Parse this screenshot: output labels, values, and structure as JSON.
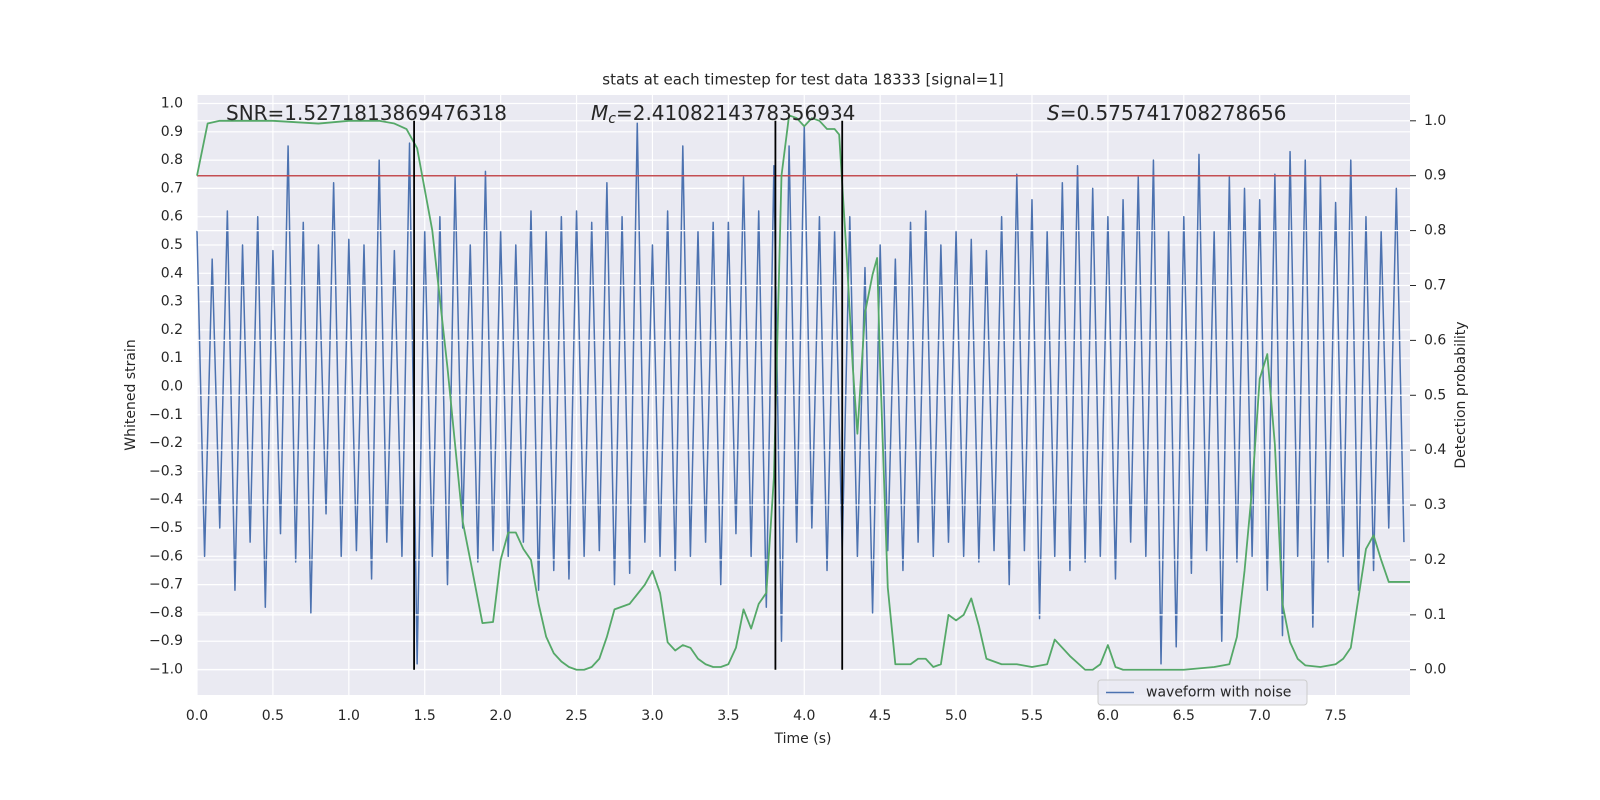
{
  "chart_data": {
    "type": "line",
    "title": "stats at each timestep for test data 18333 [signal=1]",
    "x_label": "Time (s)",
    "y_label": "Whitened strain",
    "y2_label": "Detection probability",
    "xlim": [
      0,
      7.99
    ],
    "ylim": [
      -1.09,
      1.03
    ],
    "y2lim": [
      -0.046,
      1.047
    ],
    "xticks": [
      {
        "value": 0,
        "label": "0.0"
      },
      {
        "value": 0.5,
        "label": "0.5"
      },
      {
        "value": 1,
        "label": "1.0"
      },
      {
        "value": 1.5,
        "label": "1.5"
      },
      {
        "value": 2,
        "label": "2.0"
      },
      {
        "value": 2.5,
        "label": "2.5"
      },
      {
        "value": 3,
        "label": "3.0"
      },
      {
        "value": 3.5,
        "label": "3.5"
      },
      {
        "value": 4,
        "label": "4.0"
      },
      {
        "value": 4.5,
        "label": "4.5"
      },
      {
        "value": 5,
        "label": "5.0"
      },
      {
        "value": 5.5,
        "label": "5.5"
      },
      {
        "value": 6,
        "label": "6.0"
      },
      {
        "value": 6.5,
        "label": "6.5"
      },
      {
        "value": 7,
        "label": "7.0"
      },
      {
        "value": 7.5,
        "label": "7.5"
      }
    ],
    "yticks": [
      {
        "value": -1,
        "label": "−1.0"
      },
      {
        "value": -0.9,
        "label": "−0.9"
      },
      {
        "value": -0.8,
        "label": "−0.8"
      },
      {
        "value": -0.7,
        "label": "−0.7"
      },
      {
        "value": -0.6,
        "label": "−0.6"
      },
      {
        "value": -0.5,
        "label": "−0.5"
      },
      {
        "value": -0.4,
        "label": "−0.4"
      },
      {
        "value": -0.3,
        "label": "−0.3"
      },
      {
        "value": -0.2,
        "label": "−0.2"
      },
      {
        "value": -0.1,
        "label": "−0.1"
      },
      {
        "value": 0,
        "label": "0.0"
      },
      {
        "value": 0.1,
        "label": "0.1"
      },
      {
        "value": 0.2,
        "label": "0.2"
      },
      {
        "value": 0.3,
        "label": "0.3"
      },
      {
        "value": 0.4,
        "label": "0.4"
      },
      {
        "value": 0.5,
        "label": "0.5"
      },
      {
        "value": 0.6,
        "label": "0.6"
      },
      {
        "value": 0.7,
        "label": "0.7"
      },
      {
        "value": 0.8,
        "label": "0.8"
      },
      {
        "value": 0.9,
        "label": "0.9"
      },
      {
        "value": 1,
        "label": "1.0"
      }
    ],
    "y2ticks": [
      {
        "value": 0,
        "label": "0.0"
      },
      {
        "value": 0.1,
        "label": "0.1"
      },
      {
        "value": 0.2,
        "label": "0.2"
      },
      {
        "value": 0.3,
        "label": "0.3"
      },
      {
        "value": 0.4,
        "label": "0.4"
      },
      {
        "value": 0.5,
        "label": "0.5"
      },
      {
        "value": 0.6,
        "label": "0.6"
      },
      {
        "value": 0.7,
        "label": "0.7"
      },
      {
        "value": 0.8,
        "label": "0.8"
      },
      {
        "value": 0.9,
        "label": "0.9"
      },
      {
        "value": 1,
        "label": "1.0"
      }
    ],
    "grid": true,
    "legend": "lower right",
    "threshold": {
      "value": 0.9,
      "axis": "y2",
      "color": "#c44e52"
    },
    "vlines": {
      "x": [
        1.43,
        3.81,
        4.25
      ],
      "range": [
        0,
        1
      ],
      "axis": "y2",
      "color": "#000000"
    },
    "annotations": [
      {
        "text": "SNR=1.5271813869476318"
      },
      {
        "symbol": "M",
        "subscript": "c",
        "text": "=2.4108214378356934"
      },
      {
        "symbol": "S",
        "text": "=0.575741708278656"
      }
    ],
    "series": [
      {
        "name": "waveform with noise",
        "color": "#4c72b0",
        "axis": "y",
        "x": [
          0,
          0.05,
          0.1,
          0.15,
          0.2,
          0.25,
          0.3,
          0.35,
          0.4,
          0.45,
          0.5,
          0.55,
          0.6,
          0.65,
          0.7,
          0.75,
          0.8,
          0.85,
          0.9,
          0.95,
          1,
          1.05,
          1.1,
          1.15,
          1.2,
          1.25,
          1.3,
          1.35,
          1.4,
          1.45,
          1.5,
          1.55,
          1.6,
          1.65,
          1.7,
          1.75,
          1.8,
          1.85,
          1.9,
          1.95,
          2,
          2.05,
          2.1,
          2.15,
          2.2,
          2.25,
          2.3,
          2.35,
          2.4,
          2.45,
          2.5,
          2.55,
          2.6,
          2.65,
          2.7,
          2.75,
          2.8,
          2.85,
          2.9,
          2.95,
          3,
          3.05,
          3.1,
          3.15,
          3.2,
          3.25,
          3.3,
          3.35,
          3.4,
          3.45,
          3.5,
          3.55,
          3.6,
          3.65,
          3.7,
          3.75,
          3.8,
          3.85,
          3.9,
          3.95,
          4,
          4.05,
          4.1,
          4.15,
          4.2,
          4.25,
          4.3,
          4.35,
          4.4,
          4.45,
          4.5,
          4.55,
          4.6,
          4.65,
          4.7,
          4.75,
          4.8,
          4.85,
          4.9,
          4.95,
          5,
          5.05,
          5.1,
          5.15,
          5.2,
          5.25,
          5.3,
          5.35,
          5.4,
          5.45,
          5.5,
          5.55,
          5.6,
          5.65,
          5.7,
          5.75,
          5.8,
          5.85,
          5.9,
          5.95,
          6,
          6.05,
          6.1,
          6.15,
          6.2,
          6.25,
          6.3,
          6.35,
          6.4,
          6.45,
          6.5,
          6.55,
          6.6,
          6.65,
          6.7,
          6.75,
          6.8,
          6.85,
          6.9,
          6.95,
          7,
          7.05,
          7.1,
          7.15,
          7.2,
          7.25,
          7.3,
          7.35,
          7.4,
          7.45,
          7.5,
          7.55,
          7.6,
          7.65,
          7.7,
          7.75,
          7.8,
          7.85,
          7.9,
          7.95
        ],
        "values": [
          0.55,
          -0.6,
          0.45,
          -0.5,
          0.62,
          -0.72,
          0.5,
          -0.55,
          0.6,
          -0.78,
          0.48,
          -0.52,
          0.85,
          -0.62,
          0.58,
          -0.8,
          0.5,
          -0.45,
          0.72,
          -0.6,
          0.52,
          -0.58,
          0.5,
          -0.68,
          0.8,
          -0.55,
          0.48,
          -0.6,
          0.86,
          -0.98,
          0.55,
          -0.6,
          0.6,
          -0.7,
          0.74,
          -0.5,
          0.5,
          -0.62,
          0.76,
          -0.58,
          0.55,
          -0.6,
          0.5,
          -0.55,
          0.62,
          -0.72,
          0.55,
          -0.65,
          0.6,
          -0.68,
          0.62,
          -0.6,
          0.58,
          -0.58,
          0.72,
          -0.7,
          0.6,
          -0.66,
          0.93,
          -0.55,
          0.5,
          -0.6,
          0.62,
          -0.65,
          0.85,
          -0.6,
          0.55,
          -0.55,
          0.58,
          -0.7,
          0.58,
          -0.52,
          0.74,
          -0.6,
          0.62,
          -0.78,
          0.78,
          -0.9,
          0.85,
          -0.55,
          0.92,
          -0.5,
          0.6,
          -0.65,
          0.55,
          -0.58,
          0.6,
          -0.6,
          0.42,
          -0.8,
          0.5,
          -0.58,
          0.45,
          -0.65,
          0.58,
          -0.55,
          0.62,
          -0.6,
          0.5,
          -0.55,
          0.55,
          -0.6,
          0.52,
          -0.62,
          0.48,
          -0.58,
          0.6,
          -0.7,
          0.75,
          -0.58,
          0.66,
          -0.82,
          0.55,
          -0.6,
          0.72,
          -0.65,
          0.78,
          -0.62,
          0.7,
          -0.6,
          0.6,
          -0.68,
          0.66,
          -0.55,
          0.74,
          -0.6,
          0.8,
          -0.98,
          0.55,
          -0.92,
          0.6,
          -0.66,
          0.82,
          -0.58,
          0.55,
          -0.9,
          0.74,
          -0.62,
          0.7,
          -0.6,
          0.66,
          -0.72,
          0.75,
          -0.88,
          0.83,
          -0.6,
          0.8,
          -0.85,
          0.74,
          -0.62,
          0.65,
          -0.6,
          0.8,
          -0.72,
          0.6,
          -0.65,
          0.55,
          -0.5,
          0.7,
          -0.55
        ]
      },
      {
        "color": "#55a868",
        "axis": "y2",
        "x": [
          0,
          0.07,
          0.15,
          0.5,
          0.8,
          1,
          1.2,
          1.3,
          1.38,
          1.45,
          1.55,
          1.65,
          1.75,
          1.8,
          1.88,
          1.95,
          2,
          2.05,
          2.1,
          2.15,
          2.2,
          2.25,
          2.3,
          2.35,
          2.4,
          2.45,
          2.5,
          2.55,
          2.6,
          2.65,
          2.7,
          2.75,
          2.85,
          2.95,
          3,
          3.05,
          3.1,
          3.15,
          3.2,
          3.25,
          3.3,
          3.35,
          3.4,
          3.45,
          3.5,
          3.55,
          3.6,
          3.65,
          3.7,
          3.75,
          3.8,
          3.85,
          3.9,
          3.95,
          4,
          4.05,
          4.1,
          4.15,
          4.2,
          4.23,
          4.28,
          4.32,
          4.35,
          4.4,
          4.45,
          4.48,
          4.5,
          4.55,
          4.6,
          4.65,
          4.7,
          4.75,
          4.8,
          4.85,
          4.9,
          4.95,
          5,
          5.05,
          5.1,
          5.15,
          5.2,
          5.3,
          5.4,
          5.5,
          5.6,
          5.65,
          5.75,
          5.85,
          5.9,
          5.95,
          6,
          6.05,
          6.1,
          6.2,
          6.5,
          6.7,
          6.8,
          6.85,
          6.9,
          6.95,
          7,
          7.05,
          7.1,
          7.15,
          7.2,
          7.25,
          7.3,
          7.4,
          7.5,
          7.55,
          7.6,
          7.65,
          7.7,
          7.75,
          7.8,
          7.85,
          7.99
        ],
        "values": [
          0.9,
          0.995,
          1,
          1,
          0.995,
          1,
          1,
          0.995,
          0.985,
          0.95,
          0.8,
          0.55,
          0.27,
          0.2,
          0.085,
          0.087,
          0.2,
          0.25,
          0.25,
          0.22,
          0.2,
          0.12,
          0.06,
          0.03,
          0.015,
          0.005,
          0,
          0,
          0.005,
          0.02,
          0.06,
          0.11,
          0.12,
          0.155,
          0.18,
          0.14,
          0.05,
          0.035,
          0.045,
          0.04,
          0.02,
          0.01,
          0.005,
          0.005,
          0.01,
          0.04,
          0.11,
          0.075,
          0.12,
          0.14,
          0.35,
          0.9,
          1.01,
          1.005,
          0.99,
          1.005,
          1,
          0.985,
          0.985,
          0.975,
          0.75,
          0.55,
          0.43,
          0.65,
          0.72,
          0.75,
          0.55,
          0.15,
          0.01,
          0.01,
          0.01,
          0.02,
          0.02,
          0.005,
          0.01,
          0.1,
          0.09,
          0.1,
          0.13,
          0.08,
          0.02,
          0.01,
          0.01,
          0.005,
          0.01,
          0.055,
          0.025,
          0,
          0,
          0.01,
          0.045,
          0.005,
          0,
          0,
          0,
          0.005,
          0.01,
          0.06,
          0.18,
          0.33,
          0.53,
          0.575,
          0.41,
          0.12,
          0.05,
          0.02,
          0.008,
          0.005,
          0.01,
          0.02,
          0.04,
          0.13,
          0.22,
          0.245,
          0.2,
          0.16,
          0.16
        ]
      }
    ]
  }
}
